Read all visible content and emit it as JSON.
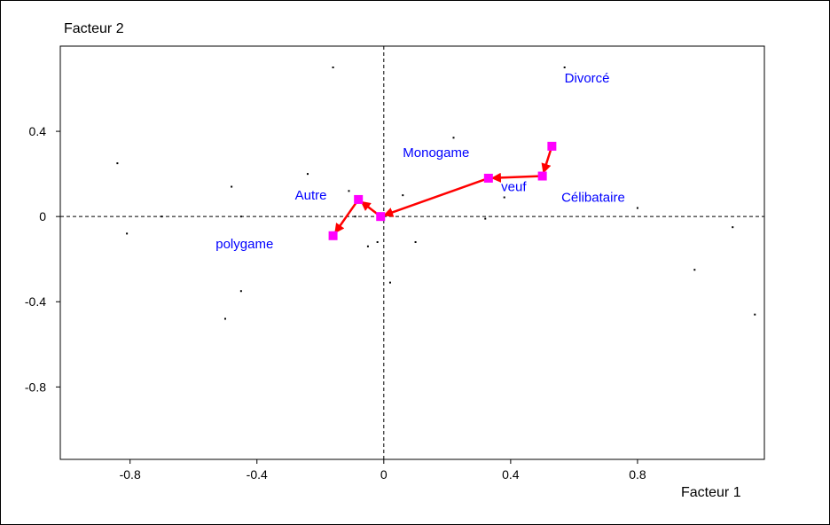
{
  "chart_data": {
    "type": "scatter",
    "xlabel": "Facteur 1",
    "ylabel": "Facteur 2",
    "xlim": [
      -1.02,
      1.2
    ],
    "ylim": [
      -1.14,
      0.8
    ],
    "xticks": [
      -0.8,
      -0.4,
      0,
      0.4,
      0.8
    ],
    "yticks": [
      0.4,
      0,
      -0.4,
      -0.8
    ],
    "xtick_labels": [
      "-0.8",
      "-0.4",
      "0",
      "0.4",
      "0.8"
    ],
    "ytick_labels": [
      "0.4",
      "0",
      "-0.4",
      "-0.8"
    ],
    "grid": false,
    "reference_lines": "dashed lines at x=0 and y=0",
    "colors": {
      "marker": "#ff00ff",
      "arrow": "#ff0000",
      "label": "#0000ff",
      "background_point": "#000000"
    },
    "categories": [
      {
        "name": "Divorcé",
        "x": 0.53,
        "y": 0.33,
        "label_dx": 0.04,
        "label_dy": 0.3
      },
      {
        "name": "Célibataire",
        "x": 0.5,
        "y": 0.19,
        "label_dx": 0.06,
        "label_dy": -0.12
      },
      {
        "name": "veuf",
        "x": 0.33,
        "y": 0.18,
        "label_dx": 0.04,
        "label_dy": -0.06
      },
      {
        "name": "Monogame",
        "x": 0.33,
        "y": 0.18,
        "label_dx": -0.27,
        "label_dy": 0.1
      },
      {
        "name": "Autre",
        "x": -0.08,
        "y": 0.08,
        "label_dx": -0.2,
        "label_dy": 0.0
      },
      {
        "name": "polygame",
        "x": -0.16,
        "y": -0.09,
        "label_dx": -0.37,
        "label_dy": -0.06
      }
    ],
    "trajectory": [
      {
        "from": [
          0.53,
          0.33
        ],
        "to": [
          0.5,
          0.19
        ]
      },
      {
        "from": [
          0.5,
          0.19
        ],
        "to": [
          0.33,
          0.18
        ]
      },
      {
        "from": [
          0.33,
          0.18
        ],
        "to": [
          -0.01,
          0.0
        ]
      },
      {
        "from": [
          -0.01,
          0.0
        ],
        "to": [
          -0.08,
          0.08
        ]
      },
      {
        "from": [
          -0.08,
          0.08
        ],
        "to": [
          -0.16,
          -0.09
        ]
      }
    ],
    "markers": [
      {
        "x": 0.53,
        "y": 0.33
      },
      {
        "x": 0.5,
        "y": 0.19
      },
      {
        "x": 0.33,
        "y": 0.18
      },
      {
        "x": -0.01,
        "y": 0.0
      },
      {
        "x": -0.08,
        "y": 0.08
      },
      {
        "x": -0.16,
        "y": -0.09
      }
    ],
    "background_points": [
      [
        -0.16,
        0.7
      ],
      [
        0.57,
        0.7
      ],
      [
        -0.84,
        0.25
      ],
      [
        0.22,
        0.37
      ],
      [
        -0.24,
        0.2
      ],
      [
        -0.48,
        0.14
      ],
      [
        -0.11,
        0.12
      ],
      [
        0.06,
        0.1
      ],
      [
        0.38,
        0.09
      ],
      [
        -0.06,
        0.05
      ],
      [
        0.02,
        0.03
      ],
      [
        -0.7,
        0.0
      ],
      [
        -0.45,
        0.0
      ],
      [
        -0.09,
        0.0
      ],
      [
        0.32,
        -0.01
      ],
      [
        0.8,
        0.04
      ],
      [
        -0.81,
        -0.08
      ],
      [
        -0.05,
        -0.14
      ],
      [
        0.1,
        -0.12
      ],
      [
        -0.02,
        -0.12
      ],
      [
        0.02,
        -0.31
      ],
      [
        -0.45,
        -0.35
      ],
      [
        -0.5,
        -0.48
      ],
      [
        0.98,
        -0.25
      ],
      [
        1.1,
        -0.05
      ],
      [
        1.17,
        -0.46
      ]
    ]
  }
}
